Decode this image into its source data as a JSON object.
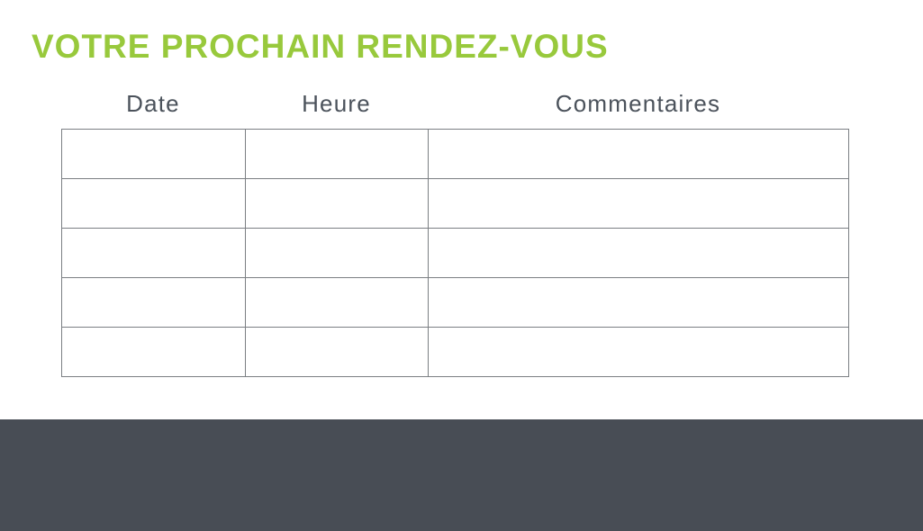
{
  "page": {
    "title": "VOTRE PROCHAIN RENDEZ-VOUS"
  },
  "table": {
    "columns": [
      {
        "key": "date",
        "label": "Date"
      },
      {
        "key": "heure",
        "label": "Heure"
      },
      {
        "key": "commentaires",
        "label": "Commentaires"
      }
    ],
    "rows": [
      {
        "cells": [
          "",
          "",
          ""
        ]
      },
      {
        "cells": [
          "",
          "",
          ""
        ]
      },
      {
        "cells": [
          "",
          "",
          ""
        ]
      },
      {
        "cells": [
          "",
          "",
          ""
        ]
      },
      {
        "cells": [
          "",
          "",
          ""
        ]
      }
    ]
  },
  "colors": {
    "title_green": "#98c93c",
    "header_text": "#4b525b",
    "table_border": "#7b7f83",
    "footer_band": "#484d55"
  }
}
